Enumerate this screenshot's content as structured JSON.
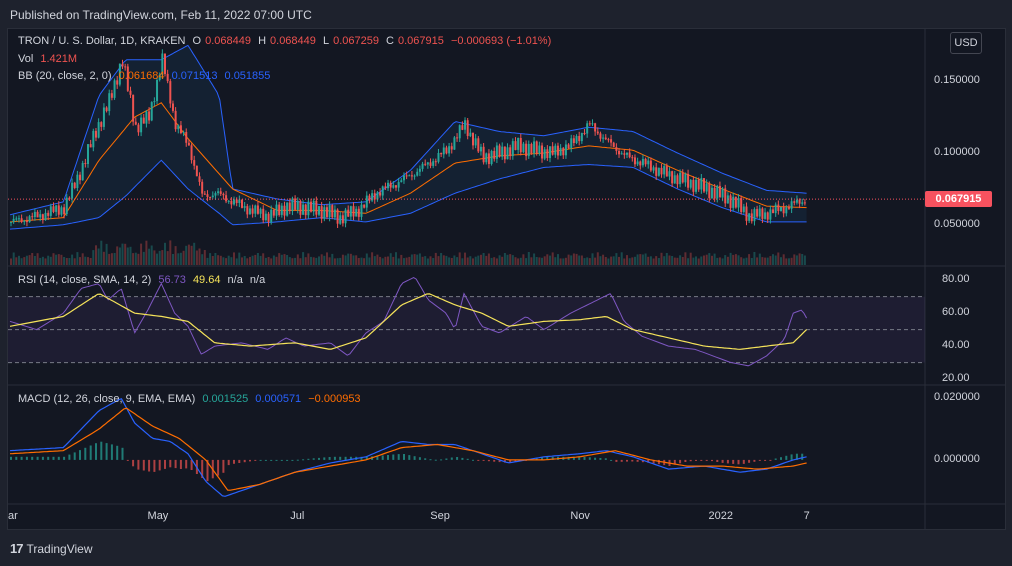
{
  "header": {
    "published": "Published on TradingView.com, Feb 11, 2022 07:00 UTC"
  },
  "footer": {
    "logo": "17",
    "brand": "TradingView"
  },
  "colors": {
    "up": "#26a69a",
    "down": "#ef5350",
    "bb": "#2962ff",
    "bb_basis": "#ff6d00",
    "rsi": "#7e57c2",
    "rsi_ma": "#f5e35a",
    "macd": "#2962ff",
    "signal": "#ff6d00"
  },
  "price_legend": {
    "symbol": "TRON / U. S. Dollar, 1D, KRAKEN",
    "o_label": "O",
    "o": "0.068449",
    "h_label": "H",
    "h": "0.068449",
    "l_label": "L",
    "l": "0.067259",
    "c_label": "C",
    "c": "0.067915",
    "change": "−0.000693 (−1.01%)",
    "vol_label": "Vol",
    "vol": "1.421M",
    "bb_label": "BB (20, close, 2, 0)",
    "bb_basis": "0.061684",
    "bb_upper": "0.071513",
    "bb_lower": "0.051855"
  },
  "rsi_legend": {
    "label": "RSI (14, close, SMA, 14, 2)",
    "rsi": "56.73",
    "ma": "49.64",
    "na1": "n/a",
    "na2": "n/a"
  },
  "macd_legend": {
    "label": "MACD (12, 26, close, 9, EMA, EMA)",
    "hist": "0.001525",
    "macd": "0.000571",
    "signal": "−0.000953"
  },
  "currency_button": "USD",
  "last_price_tag": "0.067915",
  "chart_data": [
    {
      "type": "candlestick",
      "title": "TRON / U. S. Dollar, 1D, KRAKEN",
      "yticks": [
        "0.150000",
        "0.100000",
        "0.050000"
      ],
      "ytick_values": [
        0.15,
        0.1,
        0.05
      ],
      "ylim": [
        0.022,
        0.185
      ],
      "x_ticks": [
        "ar",
        "May",
        "Jul",
        "Sep",
        "Nov",
        "2022",
        "7"
      ],
      "x_tick_pos": [
        0.0,
        0.1655,
        0.3259,
        0.4832,
        0.6406,
        0.7995,
        0.8953
      ],
      "last_value": 0.067915,
      "series": [
        {
          "name": "close",
          "t": [
            0.0,
            0.03,
            0.06,
            0.08,
            0.095,
            0.11,
            0.125,
            0.14,
            0.155,
            0.17,
            0.185,
            0.2,
            0.215,
            0.23,
            0.25,
            0.27,
            0.29,
            0.31,
            0.33,
            0.35,
            0.37,
            0.39,
            0.41,
            0.43,
            0.45,
            0.47,
            0.49,
            0.51,
            0.53,
            0.55,
            0.57,
            0.59,
            0.61,
            0.63,
            0.65,
            0.67,
            0.69,
            0.71,
            0.73,
            0.75,
            0.77,
            0.79,
            0.81,
            0.83,
            0.85,
            0.87,
            0.89,
            0.895
          ],
          "values": [
            0.052,
            0.056,
            0.062,
            0.09,
            0.115,
            0.135,
            0.165,
            0.118,
            0.125,
            0.165,
            0.12,
            0.105,
            0.07,
            0.072,
            0.066,
            0.06,
            0.056,
            0.063,
            0.062,
            0.06,
            0.055,
            0.06,
            0.072,
            0.078,
            0.085,
            0.093,
            0.102,
            0.12,
            0.097,
            0.1,
            0.105,
            0.102,
            0.1,
            0.106,
            0.12,
            0.108,
            0.098,
            0.093,
            0.087,
            0.082,
            0.078,
            0.073,
            0.067,
            0.056,
            0.058,
            0.062,
            0.067,
            0.068
          ]
        },
        {
          "name": "bb_basis",
          "t": [
            0.0,
            0.06,
            0.1,
            0.14,
            0.17,
            0.2,
            0.25,
            0.3,
            0.35,
            0.4,
            0.45,
            0.5,
            0.55,
            0.6,
            0.65,
            0.7,
            0.75,
            0.8,
            0.85,
            0.895
          ],
          "values": [
            0.052,
            0.055,
            0.095,
            0.125,
            0.135,
            0.11,
            0.075,
            0.06,
            0.06,
            0.058,
            0.072,
            0.093,
            0.098,
            0.1,
            0.105,
            0.102,
            0.088,
            0.075,
            0.063,
            0.062
          ]
        },
        {
          "name": "bb_upper",
          "t": [
            0.0,
            0.06,
            0.1,
            0.13,
            0.17,
            0.2,
            0.235,
            0.25,
            0.3,
            0.35,
            0.4,
            0.45,
            0.5,
            0.55,
            0.6,
            0.65,
            0.7,
            0.75,
            0.8,
            0.85,
            0.895
          ],
          "values": [
            0.057,
            0.066,
            0.14,
            0.165,
            0.165,
            0.175,
            0.14,
            0.075,
            0.068,
            0.064,
            0.066,
            0.088,
            0.122,
            0.115,
            0.112,
            0.118,
            0.115,
            0.1,
            0.086,
            0.074,
            0.072
          ]
        },
        {
          "name": "bb_lower",
          "t": [
            0.0,
            0.06,
            0.1,
            0.13,
            0.17,
            0.2,
            0.235,
            0.25,
            0.3,
            0.35,
            0.4,
            0.45,
            0.5,
            0.55,
            0.6,
            0.65,
            0.7,
            0.75,
            0.8,
            0.85,
            0.895
          ],
          "values": [
            0.047,
            0.05,
            0.055,
            0.07,
            0.095,
            0.075,
            0.058,
            0.05,
            0.052,
            0.055,
            0.052,
            0.058,
            0.072,
            0.082,
            0.09,
            0.092,
            0.09,
            0.075,
            0.062,
            0.052,
            0.052
          ]
        }
      ]
    },
    {
      "type": "line",
      "title": "RSI (14, close, SMA, 14, 2)",
      "yticks": [
        "80.00",
        "60.00",
        "40.00",
        "20.00"
      ],
      "ytick_values": [
        80,
        60,
        40,
        20
      ],
      "ylim": [
        17,
        88
      ],
      "bands": [
        70,
        50,
        30
      ],
      "series": [
        {
          "name": "RSI",
          "t": [
            0.0,
            0.03,
            0.06,
            0.08,
            0.1,
            0.11,
            0.125,
            0.14,
            0.155,
            0.17,
            0.185,
            0.2,
            0.215,
            0.23,
            0.26,
            0.29,
            0.31,
            0.33,
            0.36,
            0.38,
            0.4,
            0.42,
            0.44,
            0.455,
            0.47,
            0.49,
            0.5,
            0.51,
            0.53,
            0.55,
            0.58,
            0.6,
            0.63,
            0.66,
            0.675,
            0.69,
            0.71,
            0.74,
            0.77,
            0.79,
            0.81,
            0.83,
            0.85,
            0.87,
            0.88,
            0.89,
            0.895
          ],
          "values": [
            55,
            50,
            60,
            75,
            78,
            68,
            75,
            48,
            62,
            78,
            60,
            52,
            35,
            40,
            42,
            38,
            45,
            40,
            42,
            34,
            48,
            55,
            78,
            82,
            68,
            60,
            50,
            72,
            52,
            48,
            58,
            50,
            60,
            68,
            72,
            55,
            46,
            40,
            38,
            34,
            30,
            28,
            34,
            44,
            60,
            62,
            57
          ]
        },
        {
          "name": "RSI-based MA",
          "t": [
            0.0,
            0.06,
            0.1,
            0.14,
            0.17,
            0.2,
            0.23,
            0.27,
            0.32,
            0.36,
            0.4,
            0.44,
            0.47,
            0.5,
            0.53,
            0.56,
            0.6,
            0.64,
            0.67,
            0.7,
            0.74,
            0.78,
            0.82,
            0.85,
            0.88,
            0.895
          ],
          "values": [
            52,
            58,
            72,
            60,
            58,
            55,
            42,
            40,
            42,
            38,
            45,
            65,
            72,
            65,
            60,
            52,
            55,
            56,
            58,
            50,
            45,
            40,
            38,
            40,
            42,
            50
          ]
        }
      ]
    },
    {
      "type": "line",
      "title": "MACD (12, 26, close, 9, EMA, EMA)",
      "yticks": [
        "0.020000",
        "0.000000"
      ],
      "ytick_values": [
        0.02,
        0
      ],
      "ylim": [
        -0.014,
        0.024
      ],
      "series": [
        {
          "name": "MACD",
          "t": [
            0.0,
            0.06,
            0.1,
            0.125,
            0.14,
            0.16,
            0.18,
            0.2,
            0.22,
            0.24,
            0.28,
            0.32,
            0.36,
            0.4,
            0.44,
            0.47,
            0.5,
            0.53,
            0.56,
            0.6,
            0.64,
            0.67,
            0.7,
            0.74,
            0.78,
            0.82,
            0.85,
            0.88,
            0.895
          ],
          "values": [
            0.003,
            0.004,
            0.016,
            0.02,
            0.012,
            0.007,
            0.006,
            0.002,
            -0.007,
            -0.012,
            -0.008,
            -0.004,
            -0.001,
            0.001,
            0.006,
            0.005,
            0.005,
            0.002,
            -0.001,
            0.001,
            0.002,
            0.003,
            0.001,
            -0.003,
            -0.002,
            -0.004,
            -0.003,
            0.0,
            0.001
          ]
        },
        {
          "name": "Signal",
          "t": [
            0.0,
            0.06,
            0.1,
            0.13,
            0.16,
            0.19,
            0.22,
            0.245,
            0.28,
            0.32,
            0.36,
            0.4,
            0.44,
            0.48,
            0.52,
            0.56,
            0.6,
            0.64,
            0.68,
            0.72,
            0.76,
            0.8,
            0.84,
            0.88,
            0.895
          ],
          "values": [
            0.002,
            0.003,
            0.01,
            0.017,
            0.011,
            0.007,
            0.0,
            -0.01,
            -0.008,
            -0.004,
            -0.002,
            0.0,
            0.004,
            0.005,
            0.003,
            0.0,
            0.0,
            0.001,
            0.003,
            0.0,
            -0.002,
            -0.002,
            -0.003,
            -0.002,
            -0.001
          ]
        }
      ]
    }
  ]
}
